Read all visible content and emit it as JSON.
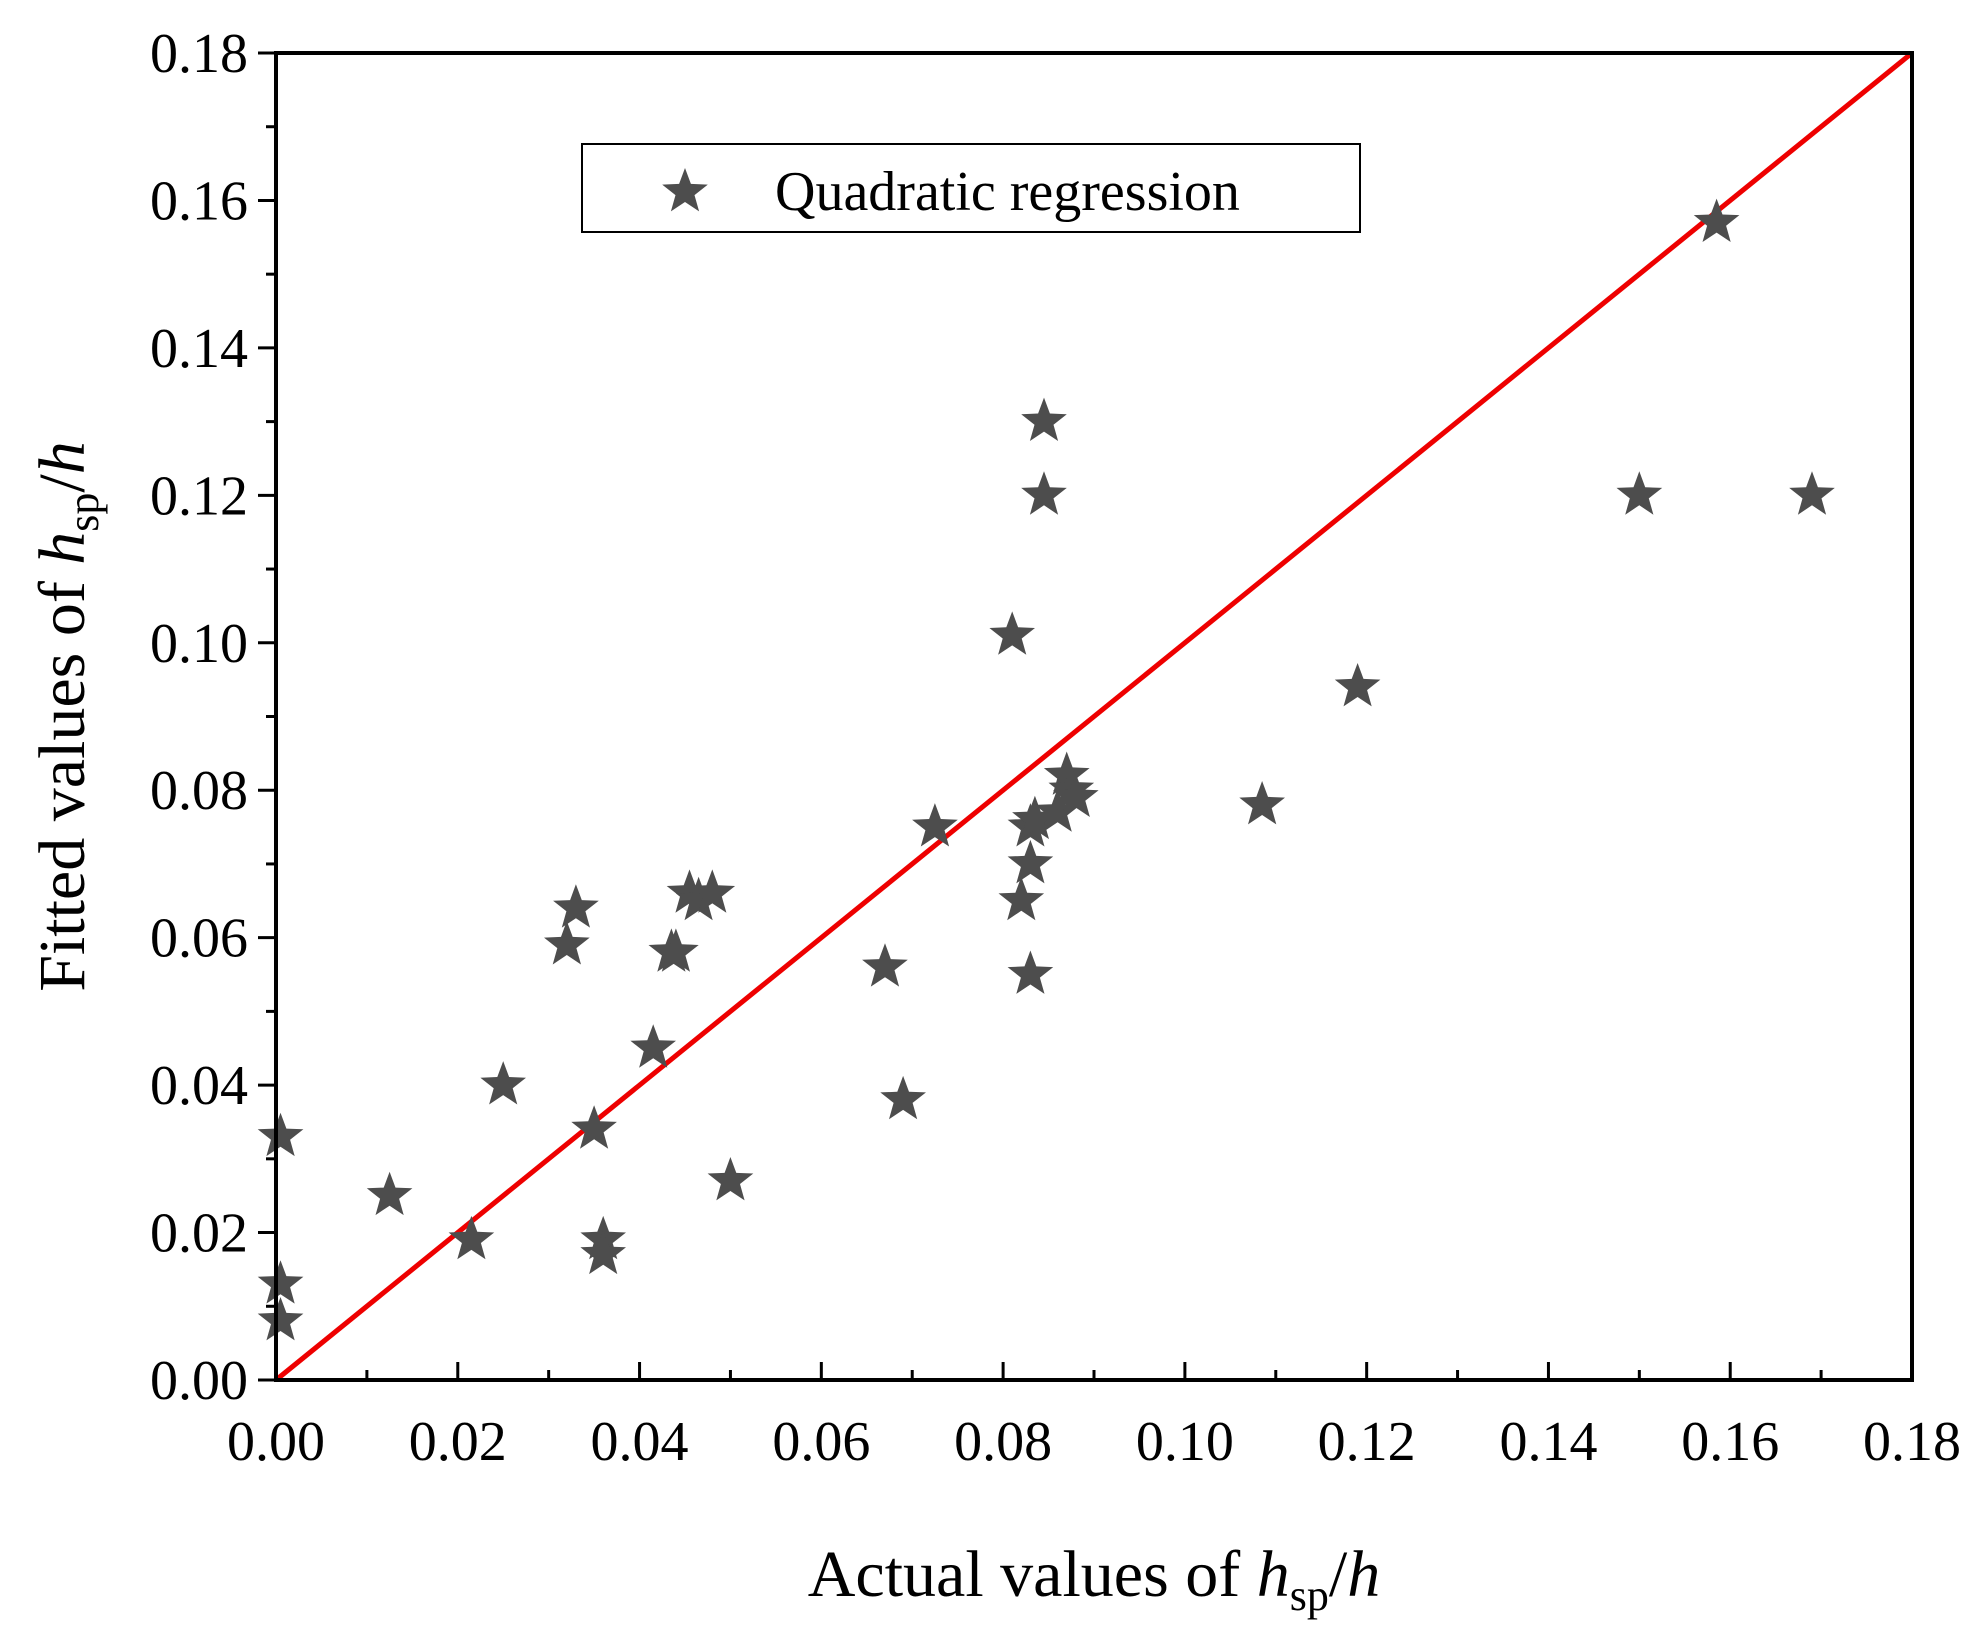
{
  "chart_data": {
    "type": "scatter",
    "title": "",
    "xlabel": {
      "prefix": "Actual values of ",
      "var": "h",
      "sub": "sp",
      "suffix": "/",
      "var2": "h"
    },
    "ylabel": {
      "prefix": "Fitted values of ",
      "var": "h",
      "sub": "sp",
      "suffix": "/",
      "var2": "h"
    },
    "xlim": [
      0,
      0.18
    ],
    "ylim": [
      0,
      0.18
    ],
    "xticks": [
      "0.00",
      "0.02",
      "0.04",
      "0.06",
      "0.08",
      "0.10",
      "0.12",
      "0.14",
      "0.16",
      "0.18"
    ],
    "yticks": [
      "0.00",
      "0.02",
      "0.04",
      "0.06",
      "0.08",
      "0.10",
      "0.12",
      "0.14",
      "0.16",
      "0.18"
    ],
    "grid": false,
    "legend_position": "top-center",
    "series": [
      {
        "name": "Quadratic regression",
        "marker": "star",
        "color": "#4d4d4d",
        "points": [
          [
            0.0005,
            0.033
          ],
          [
            0.0005,
            0.013
          ],
          [
            0.0005,
            0.008
          ],
          [
            0.0125,
            0.025
          ],
          [
            0.0215,
            0.019
          ],
          [
            0.025,
            0.04
          ],
          [
            0.032,
            0.059
          ],
          [
            0.033,
            0.064
          ],
          [
            0.035,
            0.034
          ],
          [
            0.036,
            0.019
          ],
          [
            0.036,
            0.017
          ],
          [
            0.0415,
            0.045
          ],
          [
            0.0435,
            0.058
          ],
          [
            0.044,
            0.058
          ],
          [
            0.0455,
            0.066
          ],
          [
            0.0465,
            0.065
          ],
          [
            0.048,
            0.066
          ],
          [
            0.05,
            0.027
          ],
          [
            0.067,
            0.056
          ],
          [
            0.069,
            0.038
          ],
          [
            0.0725,
            0.075
          ],
          [
            0.081,
            0.101
          ],
          [
            0.082,
            0.065
          ],
          [
            0.083,
            0.055
          ],
          [
            0.083,
            0.07
          ],
          [
            0.083,
            0.075
          ],
          [
            0.0835,
            0.076
          ],
          [
            0.0845,
            0.13
          ],
          [
            0.0845,
            0.12
          ],
          [
            0.086,
            0.077
          ],
          [
            0.087,
            0.082
          ],
          [
            0.0875,
            0.08
          ],
          [
            0.088,
            0.079
          ],
          [
            0.1085,
            0.078
          ],
          [
            0.119,
            0.094
          ],
          [
            0.15,
            0.12
          ],
          [
            0.1585,
            0.157
          ],
          [
            0.169,
            0.12
          ]
        ]
      }
    ],
    "reference_line": {
      "name": "y = x",
      "from": [
        0,
        0
      ],
      "to": [
        0.18,
        0.18
      ],
      "color": "#ee0000"
    }
  }
}
